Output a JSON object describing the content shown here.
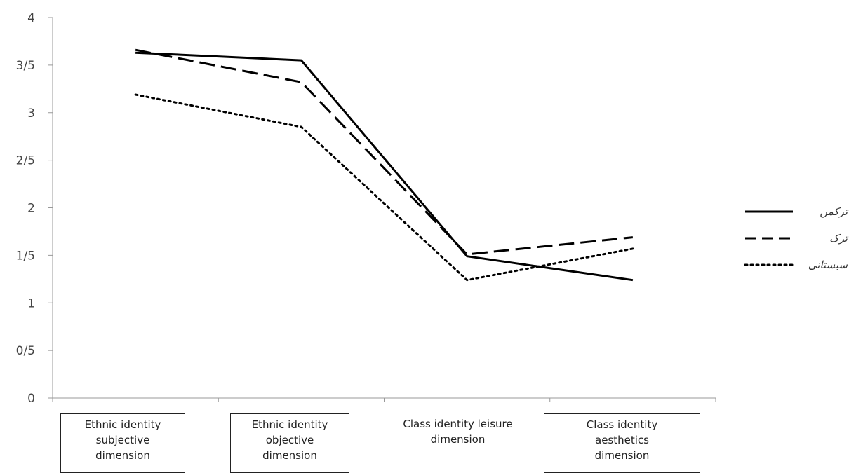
{
  "chart_data": {
    "type": "line",
    "categories": [
      "Ethnic identity subjective dimension",
      "Ethnic identity objective dimension",
      "Class identity leisure dimension",
      "Class identity aesthetics dimension"
    ],
    "category_lines": [
      [
        "Ethnic identity",
        "subjective",
        "dimension"
      ],
      [
        "Ethnic identity",
        "objective",
        "dimension"
      ],
      [
        "Class identity leisure",
        "dimension"
      ],
      [
        "Class identity",
        "aesthetics",
        "dimension"
      ]
    ],
    "series": [
      {
        "name": "ترکمن",
        "values": [
          3.63,
          3.55,
          1.49,
          1.24
        ],
        "style": "solid",
        "color": "#000000"
      },
      {
        "name": "ترک",
        "values": [
          3.66,
          3.32,
          1.51,
          1.69
        ],
        "style": "dashed",
        "color": "#000000"
      },
      {
        "name": "سیستانی",
        "values": [
          3.19,
          2.85,
          1.24,
          1.57
        ],
        "style": "dotted",
        "color": "#000000"
      }
    ],
    "y_ticks": [
      "0",
      "0/5",
      "1",
      "1/5",
      "2",
      "2/5",
      "3",
      "3/5",
      "4"
    ],
    "ylim": [
      0,
      4
    ],
    "title": "",
    "xlabel": "",
    "ylabel": "",
    "grid": false,
    "legend_position": "right"
  }
}
